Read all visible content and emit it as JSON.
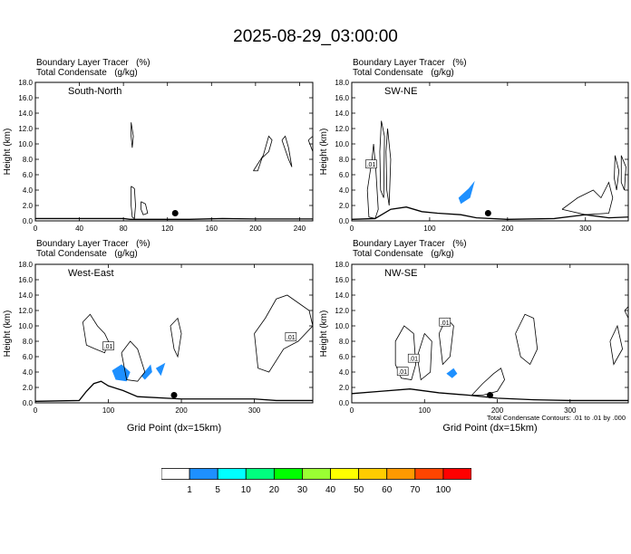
{
  "title": "2025-08-29_03:00:00",
  "footnote": "Total Condensate Contours: .01 to .01 by .000",
  "panel_common": {
    "line1_name": "Boundary Layer Tracer",
    "line1_unit": "(%)",
    "line2_name": "Total Condensate",
    "line2_unit": "(g/kg)",
    "ylabel": "Height (km)",
    "xlabel": "Grid Point (dx=15km)"
  },
  "colorbar": {
    "labels": [
      "1",
      "5",
      "10",
      "20",
      "30",
      "40",
      "50",
      "60",
      "70",
      "100"
    ],
    "colors": [
      "#ffffff",
      "#1e90ff",
      "#00ffff",
      "#00ff7f",
      "#00ff00",
      "#9aff33",
      "#ffff00",
      "#ffcc00",
      "#ff9900",
      "#ff4500",
      "#ff0000"
    ]
  },
  "chart_data": [
    {
      "type": "contour",
      "label": "South-North",
      "xlim": [
        0,
        252
      ],
      "ylim": [
        0,
        18
      ],
      "xticks": [
        0,
        40,
        80,
        120,
        160,
        200,
        240
      ],
      "yticks": [
        "0.0",
        "2.0",
        "4.0",
        "6.0",
        "8.0",
        "10.0",
        "12.0",
        "14.0",
        "16.0",
        "18.0"
      ],
      "contour_labels": [],
      "terrain": [
        [
          0,
          0.3
        ],
        [
          80,
          0.3
        ],
        [
          86,
          0.2
        ],
        [
          140,
          0.2
        ],
        [
          170,
          0.3
        ],
        [
          200,
          0.25
        ],
        [
          252,
          0.25
        ]
      ],
      "marker": [
        127,
        1.0
      ],
      "condensate_contours": [
        [
          [
            87,
            4.5
          ],
          [
            90,
            4.2
          ],
          [
            91,
            2
          ],
          [
            90,
            0.3
          ],
          [
            88,
            0.5
          ],
          [
            87,
            2
          ],
          [
            87,
            4.5
          ]
        ],
        [
          [
            87,
            12.8
          ],
          [
            89,
            11
          ],
          [
            88,
            9.5
          ],
          [
            87,
            11
          ],
          [
            87,
            12.8
          ]
        ],
        [
          [
            96,
            2.5
          ],
          [
            100,
            2.2
          ],
          [
            102,
            1
          ],
          [
            98,
            0.8
          ],
          [
            96,
            1.5
          ],
          [
            96,
            2.5
          ]
        ],
        [
          [
            198,
            6.5
          ],
          [
            207,
            8.5
          ],
          [
            212,
            11
          ],
          [
            215,
            10.5
          ],
          [
            212,
            9
          ],
          [
            206,
            8.2
          ],
          [
            202,
            6.5
          ],
          [
            198,
            6.5
          ]
        ],
        [
          [
            224,
            10.5
          ],
          [
            230,
            8
          ],
          [
            233,
            7
          ],
          [
            230,
            9.5
          ],
          [
            227,
            11
          ],
          [
            224,
            10.5
          ]
        ],
        [
          [
            248,
            10.5
          ],
          [
            252,
            11
          ],
          [
            252,
            9
          ],
          [
            248,
            10.5
          ]
        ]
      ],
      "tracer_shading": []
    },
    {
      "type": "contour",
      "label": "SW-NE",
      "xlim": [
        0,
        355
      ],
      "ylim": [
        0,
        18
      ],
      "xticks": [
        0,
        100,
        200,
        300
      ],
      "yticks": [
        "0.0",
        "2.0",
        "4.0",
        "6.0",
        "8.0",
        "10.0",
        "12.0",
        "14.0",
        "16.0",
        "18.0"
      ],
      "contour_labels": [
        {
          "text": ".01",
          "x": 25,
          "y": 7.4
        }
      ],
      "terrain": [
        [
          0,
          0.2
        ],
        [
          30,
          0.3
        ],
        [
          50,
          1.5
        ],
        [
          70,
          1.8
        ],
        [
          90,
          1.2
        ],
        [
          110,
          1.0
        ],
        [
          140,
          0.8
        ],
        [
          160,
          0.4
        ],
        [
          200,
          0.2
        ],
        [
          260,
          0.3
        ],
        [
          300,
          0.8
        ],
        [
          330,
          0.4
        ],
        [
          355,
          0.5
        ]
      ],
      "marker": [
        175,
        1.0
      ],
      "condensate_contours": [
        [
          [
            20,
            4
          ],
          [
            26,
            8
          ],
          [
            28,
            10
          ],
          [
            31,
            6.5
          ],
          [
            34,
            1.5
          ],
          [
            30,
            0.3
          ],
          [
            22,
            0.5
          ],
          [
            20,
            4
          ]
        ],
        [
          [
            38,
            13
          ],
          [
            42,
            11
          ],
          [
            41,
            3
          ],
          [
            37,
            4
          ],
          [
            36,
            9
          ],
          [
            38,
            13
          ]
        ],
        [
          [
            46,
            12
          ],
          [
            50,
            8
          ],
          [
            48,
            2
          ],
          [
            45,
            4
          ],
          [
            44,
            9
          ],
          [
            46,
            12
          ]
        ],
        [
          [
            270,
            1.5
          ],
          [
            290,
            3
          ],
          [
            310,
            4
          ],
          [
            320,
            3
          ],
          [
            330,
            5
          ],
          [
            335,
            3
          ],
          [
            330,
            1
          ],
          [
            300,
            0.8
          ],
          [
            270,
            1.5
          ]
        ],
        [
          [
            338,
            8.5
          ],
          [
            343,
            6.5
          ],
          [
            340,
            4
          ],
          [
            337,
            5.5
          ],
          [
            338,
            8.5
          ]
        ],
        [
          [
            346,
            8.5
          ],
          [
            352,
            7
          ],
          [
            350,
            4
          ],
          [
            346,
            5
          ],
          [
            346,
            8.5
          ]
        ]
      ],
      "tracer_shading": [
        [
          [
            137,
            3
          ],
          [
            150,
            4.2
          ],
          [
            158,
            5.2
          ],
          [
            152,
            3
          ],
          [
            140,
            2.2
          ],
          [
            137,
            3
          ]
        ]
      ]
    },
    {
      "type": "contour",
      "label": "West-East",
      "xlim": [
        0,
        380
      ],
      "ylim": [
        0,
        18
      ],
      "xticks": [
        0,
        100,
        200,
        300
      ],
      "yticks": [
        "0.0",
        "2.0",
        "4.0",
        "6.0",
        "8.0",
        "10.0",
        "12.0",
        "14.0",
        "16.0",
        "18.0"
      ],
      "contour_labels": [
        {
          "text": ".01",
          "x": 100,
          "y": 7.4
        },
        {
          "text": ".01",
          "x": 350,
          "y": 8.6
        }
      ],
      "terrain": [
        [
          0,
          0.2
        ],
        [
          60,
          0.3
        ],
        [
          70,
          1.5
        ],
        [
          80,
          2.5
        ],
        [
          90,
          2.8
        ],
        [
          100,
          2.2
        ],
        [
          120,
          1.6
        ],
        [
          140,
          0.8
        ],
        [
          200,
          0.5
        ],
        [
          300,
          0.5
        ],
        [
          330,
          0.3
        ],
        [
          380,
          0.3
        ]
      ],
      "marker": [
        190,
        1.0
      ],
      "condensate_contours": [
        [
          [
            65,
            10.5
          ],
          [
            75,
            11.5
          ],
          [
            85,
            10
          ],
          [
            95,
            9
          ],
          [
            100,
            8
          ],
          [
            95,
            6.5
          ],
          [
            82,
            7
          ],
          [
            70,
            7.5
          ],
          [
            65,
            10.5
          ]
        ],
        [
          [
            118,
            6.5
          ],
          [
            130,
            8
          ],
          [
            140,
            7
          ],
          [
            150,
            4
          ],
          [
            140,
            2.8
          ],
          [
            125,
            3
          ],
          [
            118,
            6.5
          ]
        ],
        [
          [
            185,
            10
          ],
          [
            195,
            11
          ],
          [
            200,
            9
          ],
          [
            195,
            6
          ],
          [
            190,
            7
          ],
          [
            185,
            10
          ]
        ],
        [
          [
            300,
            9
          ],
          [
            315,
            11
          ],
          [
            330,
            13.5
          ],
          [
            345,
            14
          ],
          [
            360,
            13
          ],
          [
            375,
            12
          ],
          [
            380,
            10
          ],
          [
            360,
            8
          ],
          [
            340,
            7
          ],
          [
            320,
            4
          ],
          [
            305,
            4.5
          ],
          [
            300,
            9
          ]
        ]
      ],
      "tracer_shading": [
        [
          [
            105,
            4.2
          ],
          [
            118,
            5
          ],
          [
            130,
            4
          ],
          [
            125,
            2.8
          ],
          [
            110,
            3
          ],
          [
            105,
            4.2
          ]
        ],
        [
          [
            145,
            3.5
          ],
          [
            158,
            5
          ],
          [
            160,
            4
          ],
          [
            150,
            3
          ],
          [
            145,
            3.5
          ]
        ],
        [
          [
            165,
            4.5
          ],
          [
            178,
            5.2
          ],
          [
            172,
            3.5
          ],
          [
            165,
            4.5
          ]
        ]
      ]
    },
    {
      "type": "contour",
      "label": "NW-SE",
      "xlim": [
        0,
        380
      ],
      "ylim": [
        0,
        18
      ],
      "xticks": [
        0,
        100,
        200,
        300
      ],
      "yticks": [
        "0.0",
        "2.0",
        "4.0",
        "6.0",
        "8.0",
        "10.0",
        "12.0",
        "14.0",
        "16.0",
        "18.0"
      ],
      "contour_labels": [
        {
          "text": ".01",
          "x": 70,
          "y": 4.1
        },
        {
          "text": ".01",
          "x": 85,
          "y": 5.8
        },
        {
          "text": ".01",
          "x": 128,
          "y": 10.5
        }
      ],
      "terrain": [
        [
          0,
          1.2
        ],
        [
          40,
          1.5
        ],
        [
          80,
          1.8
        ],
        [
          120,
          1.3
        ],
        [
          160,
          1.0
        ],
        [
          200,
          0.6
        ],
        [
          250,
          0.4
        ],
        [
          300,
          0.3
        ],
        [
          380,
          0.3
        ]
      ],
      "marker": [
        190,
        1.0
      ],
      "condensate_contours": [
        [
          [
            60,
            8
          ],
          [
            72,
            10
          ],
          [
            85,
            9
          ],
          [
            88,
            5
          ],
          [
            82,
            3
          ],
          [
            68,
            3.2
          ],
          [
            60,
            5
          ],
          [
            60,
            8
          ]
        ],
        [
          [
            90,
            6
          ],
          [
            100,
            9
          ],
          [
            110,
            8
          ],
          [
            108,
            4
          ],
          [
            95,
            3
          ],
          [
            90,
            6
          ]
        ],
        [
          [
            120,
            9
          ],
          [
            130,
            11
          ],
          [
            140,
            10
          ],
          [
            135,
            6
          ],
          [
            125,
            5
          ],
          [
            120,
            9
          ]
        ],
        [
          [
            165,
            1
          ],
          [
            180,
            2.5
          ],
          [
            195,
            3.8
          ],
          [
            205,
            4.5
          ],
          [
            210,
            3
          ],
          [
            200,
            1.5
          ],
          [
            180,
            1
          ],
          [
            165,
            1
          ]
        ],
        [
          [
            225,
            9
          ],
          [
            238,
            11.5
          ],
          [
            250,
            11
          ],
          [
            255,
            7
          ],
          [
            245,
            5
          ],
          [
            232,
            6
          ],
          [
            225,
            9
          ]
        ],
        [
          [
            355,
            8
          ],
          [
            365,
            10
          ],
          [
            372,
            7
          ],
          [
            360,
            5
          ],
          [
            355,
            8
          ]
        ],
        [
          [
            375,
            12
          ],
          [
            380,
            12.5
          ],
          [
            380,
            11
          ],
          [
            375,
            12
          ]
        ]
      ],
      "tracer_shading": [
        [
          [
            130,
            3.8
          ],
          [
            140,
            4.5
          ],
          [
            145,
            3.8
          ],
          [
            138,
            3.2
          ],
          [
            130,
            3.8
          ]
        ]
      ]
    }
  ]
}
